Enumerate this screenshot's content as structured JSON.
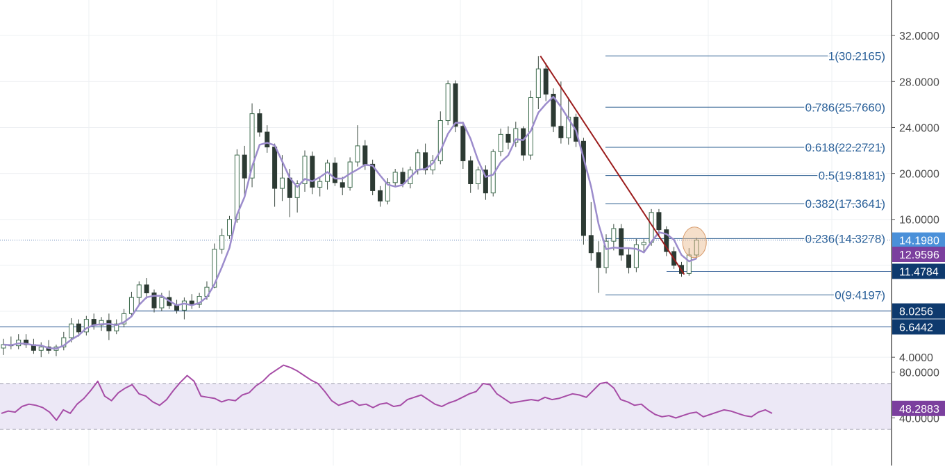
{
  "colors": {
    "background": "#ffffff",
    "grid": "#eef0f3",
    "axis_line": "#555555",
    "axis_text": "#4a4a4a",
    "bull_fill": "#ffffff",
    "bull_stroke": "#3c6b4c",
    "bear_fill": "#2c3a33",
    "bear_stroke": "#2c3a33",
    "wick": "#3b4a40",
    "ma": "#9c8ccc",
    "fib": "#2a5d8f",
    "fib_text": "#2a6099",
    "trendline": "#9b1c1c",
    "support": "#1f4e8c",
    "rsi": "#a64ca6",
    "rsi_band_fill": "#ece8f6",
    "rsi_band_line": "#9a9aa8",
    "price_tag_blue": "#4a90d9",
    "price_tag_purple": "#7b3f9e",
    "price_tag_navy": "#0e3a6e",
    "highlight_circle": "#e8b88a"
  },
  "chart_data": [
    {
      "type": "candlestick",
      "title": "",
      "ylim": [
        0,
        35
      ],
      "grid": true,
      "y_ticks": [
        "32.0000",
        "28.0000",
        "24.0000",
        "20.0000",
        "16.0000",
        "4.0000"
      ],
      "moving_average": {
        "color": "#9c8ccc"
      },
      "current_price_line": 14.198,
      "price_tags": [
        {
          "label": "14.1980",
          "value": 14.198,
          "color": "#4a90d9"
        },
        {
          "label": "12.9596",
          "value": 12.9596,
          "color": "#7b3f9e"
        },
        {
          "label": "11.4784",
          "value": 11.4784,
          "color": "#0e3a6e"
        },
        {
          "label": "8.0256",
          "value": 8.0256,
          "color": "#0e3a6e"
        },
        {
          "label": "6.6442",
          "value": 6.6442,
          "color": "#0e3a6e"
        }
      ],
      "fibonacci_levels": [
        {
          "label": "1(30.2165)",
          "value": 30.2165
        },
        {
          "label": "0.786(25.7660)",
          "value": 25.766
        },
        {
          "label": "0.618(22.2721)",
          "value": 22.2721
        },
        {
          "label": "0.5(19.8181)",
          "value": 19.8181
        },
        {
          "label": "0.382(17.3641)",
          "value": 17.3641
        },
        {
          "label": "0.236(14.3278)",
          "value": 14.3278
        },
        {
          "label": "0(9.4197)",
          "value": 9.4197
        }
      ],
      "support_lines": [
        8.0256,
        6.6442,
        11.4784
      ],
      "trendline": {
        "from": [
          71,
          30.2165
        ],
        "to": [
          90,
          11.2
        ]
      },
      "candles": [
        {
          "o": 4.8,
          "h": 5.6,
          "l": 4.2,
          "c": 5.1
        },
        {
          "o": 5.1,
          "h": 5.8,
          "l": 4.7,
          "c": 5.0
        },
        {
          "o": 5.0,
          "h": 6.0,
          "l": 4.7,
          "c": 5.5
        },
        {
          "o": 5.5,
          "h": 6.0,
          "l": 4.8,
          "c": 5.1
        },
        {
          "o": 5.1,
          "h": 5.6,
          "l": 4.3,
          "c": 4.6
        },
        {
          "o": 4.6,
          "h": 5.3,
          "l": 4.0,
          "c": 4.9
        },
        {
          "o": 4.9,
          "h": 5.5,
          "l": 4.3,
          "c": 4.6
        },
        {
          "o": 4.6,
          "h": 5.1,
          "l": 4.1,
          "c": 4.9
        },
        {
          "o": 4.9,
          "h": 6.2,
          "l": 4.6,
          "c": 5.7
        },
        {
          "o": 5.7,
          "h": 7.4,
          "l": 5.3,
          "c": 6.9
        },
        {
          "o": 6.9,
          "h": 7.3,
          "l": 5.8,
          "c": 6.2
        },
        {
          "o": 6.2,
          "h": 7.6,
          "l": 5.9,
          "c": 7.3
        },
        {
          "o": 7.3,
          "h": 7.8,
          "l": 6.4,
          "c": 6.8
        },
        {
          "o": 6.8,
          "h": 7.5,
          "l": 6.3,
          "c": 7.2
        },
        {
          "o": 7.2,
          "h": 7.8,
          "l": 5.5,
          "c": 6.3
        },
        {
          "o": 6.3,
          "h": 7.3,
          "l": 6.0,
          "c": 6.9
        },
        {
          "o": 6.9,
          "h": 8.2,
          "l": 6.6,
          "c": 7.8
        },
        {
          "o": 7.8,
          "h": 9.7,
          "l": 7.5,
          "c": 9.2
        },
        {
          "o": 9.2,
          "h": 10.6,
          "l": 8.6,
          "c": 10.3
        },
        {
          "o": 10.3,
          "h": 10.9,
          "l": 9.1,
          "c": 9.6
        },
        {
          "o": 9.6,
          "h": 9.9,
          "l": 7.9,
          "c": 8.3
        },
        {
          "o": 8.3,
          "h": 9.6,
          "l": 8.0,
          "c": 9.2
        },
        {
          "o": 9.2,
          "h": 9.8,
          "l": 8.2,
          "c": 8.5
        },
        {
          "o": 8.5,
          "h": 9.0,
          "l": 7.8,
          "c": 8.1
        },
        {
          "o": 8.1,
          "h": 9.2,
          "l": 7.3,
          "c": 8.9
        },
        {
          "o": 8.9,
          "h": 9.5,
          "l": 8.2,
          "c": 8.6
        },
        {
          "o": 8.6,
          "h": 9.6,
          "l": 8.3,
          "c": 9.3
        },
        {
          "o": 9.3,
          "h": 10.6,
          "l": 9.0,
          "c": 10.1
        },
        {
          "o": 10.1,
          "h": 13.9,
          "l": 10.0,
          "c": 13.4
        },
        {
          "o": 13.4,
          "h": 15.2,
          "l": 13.0,
          "c": 14.6
        },
        {
          "o": 14.6,
          "h": 16.3,
          "l": 14.3,
          "c": 16.0
        },
        {
          "o": 16.0,
          "h": 22.1,
          "l": 15.7,
          "c": 21.6
        },
        {
          "o": 21.6,
          "h": 22.4,
          "l": 17.9,
          "c": 19.6
        },
        {
          "o": 19.6,
          "h": 26.1,
          "l": 18.8,
          "c": 25.2
        },
        {
          "o": 25.2,
          "h": 25.6,
          "l": 23.2,
          "c": 23.6
        },
        {
          "o": 23.6,
          "h": 24.2,
          "l": 21.8,
          "c": 22.3
        },
        {
          "o": 22.3,
          "h": 22.6,
          "l": 17.1,
          "c": 18.7
        },
        {
          "o": 18.7,
          "h": 21.6,
          "l": 17.6,
          "c": 19.6
        },
        {
          "o": 19.6,
          "h": 20.4,
          "l": 16.2,
          "c": 17.9
        },
        {
          "o": 17.9,
          "h": 19.4,
          "l": 16.6,
          "c": 19.1
        },
        {
          "o": 19.1,
          "h": 22.0,
          "l": 18.4,
          "c": 21.5
        },
        {
          "o": 21.5,
          "h": 21.9,
          "l": 18.2,
          "c": 18.8
        },
        {
          "o": 18.8,
          "h": 19.6,
          "l": 18.0,
          "c": 19.3
        },
        {
          "o": 19.3,
          "h": 21.2,
          "l": 18.6,
          "c": 20.9
        },
        {
          "o": 20.9,
          "h": 21.4,
          "l": 18.9,
          "c": 19.2
        },
        {
          "o": 19.2,
          "h": 19.7,
          "l": 18.1,
          "c": 18.8
        },
        {
          "o": 18.8,
          "h": 21.4,
          "l": 18.5,
          "c": 21.0
        },
        {
          "o": 21.0,
          "h": 24.2,
          "l": 20.6,
          "c": 22.4
        },
        {
          "o": 22.4,
          "h": 22.9,
          "l": 20.3,
          "c": 20.8
        },
        {
          "o": 20.8,
          "h": 21.2,
          "l": 18.1,
          "c": 18.5
        },
        {
          "o": 18.5,
          "h": 18.9,
          "l": 17.1,
          "c": 17.6
        },
        {
          "o": 17.6,
          "h": 19.6,
          "l": 17.3,
          "c": 19.2
        },
        {
          "o": 19.2,
          "h": 20.4,
          "l": 18.8,
          "c": 20.1
        },
        {
          "o": 20.1,
          "h": 20.5,
          "l": 18.8,
          "c": 19.1
        },
        {
          "o": 19.1,
          "h": 20.6,
          "l": 18.7,
          "c": 20.3
        },
        {
          "o": 20.3,
          "h": 22.1,
          "l": 19.9,
          "c": 21.8
        },
        {
          "o": 21.8,
          "h": 22.6,
          "l": 19.9,
          "c": 20.3
        },
        {
          "o": 20.3,
          "h": 21.6,
          "l": 19.9,
          "c": 21.1
        },
        {
          "o": 21.1,
          "h": 25.4,
          "l": 20.8,
          "c": 24.6
        },
        {
          "o": 24.6,
          "h": 28.1,
          "l": 24.2,
          "c": 27.8
        },
        {
          "o": 27.8,
          "h": 28.1,
          "l": 23.6,
          "c": 24.1
        },
        {
          "o": 24.1,
          "h": 24.5,
          "l": 20.4,
          "c": 21.1
        },
        {
          "o": 21.1,
          "h": 21.5,
          "l": 18.3,
          "c": 19.1
        },
        {
          "o": 19.1,
          "h": 20.6,
          "l": 18.6,
          "c": 20.3
        },
        {
          "o": 20.3,
          "h": 20.7,
          "l": 17.7,
          "c": 18.3
        },
        {
          "o": 18.3,
          "h": 22.1,
          "l": 18.0,
          "c": 21.9
        },
        {
          "o": 21.9,
          "h": 23.9,
          "l": 21.5,
          "c": 23.4
        },
        {
          "o": 23.4,
          "h": 24.1,
          "l": 22.1,
          "c": 22.7
        },
        {
          "o": 22.7,
          "h": 24.5,
          "l": 22.3,
          "c": 23.9
        },
        {
          "o": 23.9,
          "h": 24.1,
          "l": 21.1,
          "c": 21.6
        },
        {
          "o": 21.6,
          "h": 27.2,
          "l": 21.2,
          "c": 26.6
        },
        {
          "o": 26.6,
          "h": 30.2,
          "l": 25.6,
          "c": 29.1
        },
        {
          "o": 29.1,
          "h": 29.6,
          "l": 26.3,
          "c": 26.9
        },
        {
          "o": 26.9,
          "h": 27.4,
          "l": 23.6,
          "c": 24.1
        },
        {
          "o": 24.1,
          "h": 28.0,
          "l": 22.6,
          "c": 23.1
        },
        {
          "o": 23.1,
          "h": 26.6,
          "l": 22.5,
          "c": 24.9
        },
        {
          "o": 24.9,
          "h": 25.2,
          "l": 22.3,
          "c": 22.8
        },
        {
          "o": 22.8,
          "h": 23.1,
          "l": 13.8,
          "c": 14.6
        },
        {
          "o": 14.6,
          "h": 17.5,
          "l": 12.4,
          "c": 13.1
        },
        {
          "o": 13.1,
          "h": 14.1,
          "l": 9.6,
          "c": 11.8
        },
        {
          "o": 11.8,
          "h": 14.7,
          "l": 11.3,
          "c": 14.1
        },
        {
          "o": 14.1,
          "h": 15.6,
          "l": 13.3,
          "c": 15.2
        },
        {
          "o": 15.2,
          "h": 15.6,
          "l": 12.4,
          "c": 12.9
        },
        {
          "o": 12.9,
          "h": 13.5,
          "l": 11.3,
          "c": 11.8
        },
        {
          "o": 11.8,
          "h": 14.3,
          "l": 11.4,
          "c": 13.8
        },
        {
          "o": 13.8,
          "h": 14.3,
          "l": 13.1,
          "c": 14.0
        },
        {
          "o": 14.0,
          "h": 16.9,
          "l": 13.7,
          "c": 16.6
        },
        {
          "o": 16.6,
          "h": 16.9,
          "l": 14.6,
          "c": 15.1
        },
        {
          "o": 15.1,
          "h": 15.4,
          "l": 12.8,
          "c": 13.2
        },
        {
          "o": 13.2,
          "h": 13.6,
          "l": 11.7,
          "c": 12.0
        },
        {
          "o": 12.0,
          "h": 12.3,
          "l": 11.0,
          "c": 11.3
        },
        {
          "o": 11.3,
          "h": 13.5,
          "l": 11.1,
          "c": 12.9
        },
        {
          "o": 12.9,
          "h": 14.4,
          "l": 12.6,
          "c": 14.2
        }
      ]
    },
    {
      "type": "line",
      "title": "",
      "ylim": [
        33,
        93
      ],
      "grid": true,
      "y_ticks": [
        "80.0000",
        "40.0000"
      ],
      "band": [
        30,
        70
      ],
      "price_tags": [
        {
          "label": "48.2883",
          "value": 48.2883,
          "color": "#7b3f9e"
        }
      ],
      "values": [
        44,
        46,
        45,
        50,
        52,
        51,
        49,
        45,
        38,
        47,
        44,
        52,
        57,
        64,
        72,
        59,
        55,
        62,
        66,
        69,
        61,
        59,
        54,
        51,
        56,
        64,
        71,
        77,
        72,
        59,
        58,
        57,
        54,
        56,
        55,
        60,
        62,
        68,
        72,
        78,
        82,
        86,
        84,
        81,
        77,
        73,
        70,
        63,
        55,
        51,
        53,
        55,
        51,
        52,
        49,
        52,
        53,
        50,
        51,
        56,
        58,
        60,
        56,
        52,
        50,
        53,
        55,
        58,
        61,
        63,
        70,
        69,
        61,
        57,
        53,
        54,
        55,
        56,
        55,
        58,
        56,
        57,
        59,
        61,
        60,
        58,
        64,
        70,
        71,
        66,
        56,
        54,
        51,
        52,
        47,
        43,
        41,
        42,
        40,
        42,
        44,
        45,
        41,
        43,
        45,
        47,
        46,
        44,
        42,
        41,
        45,
        47,
        44
      ]
    }
  ]
}
